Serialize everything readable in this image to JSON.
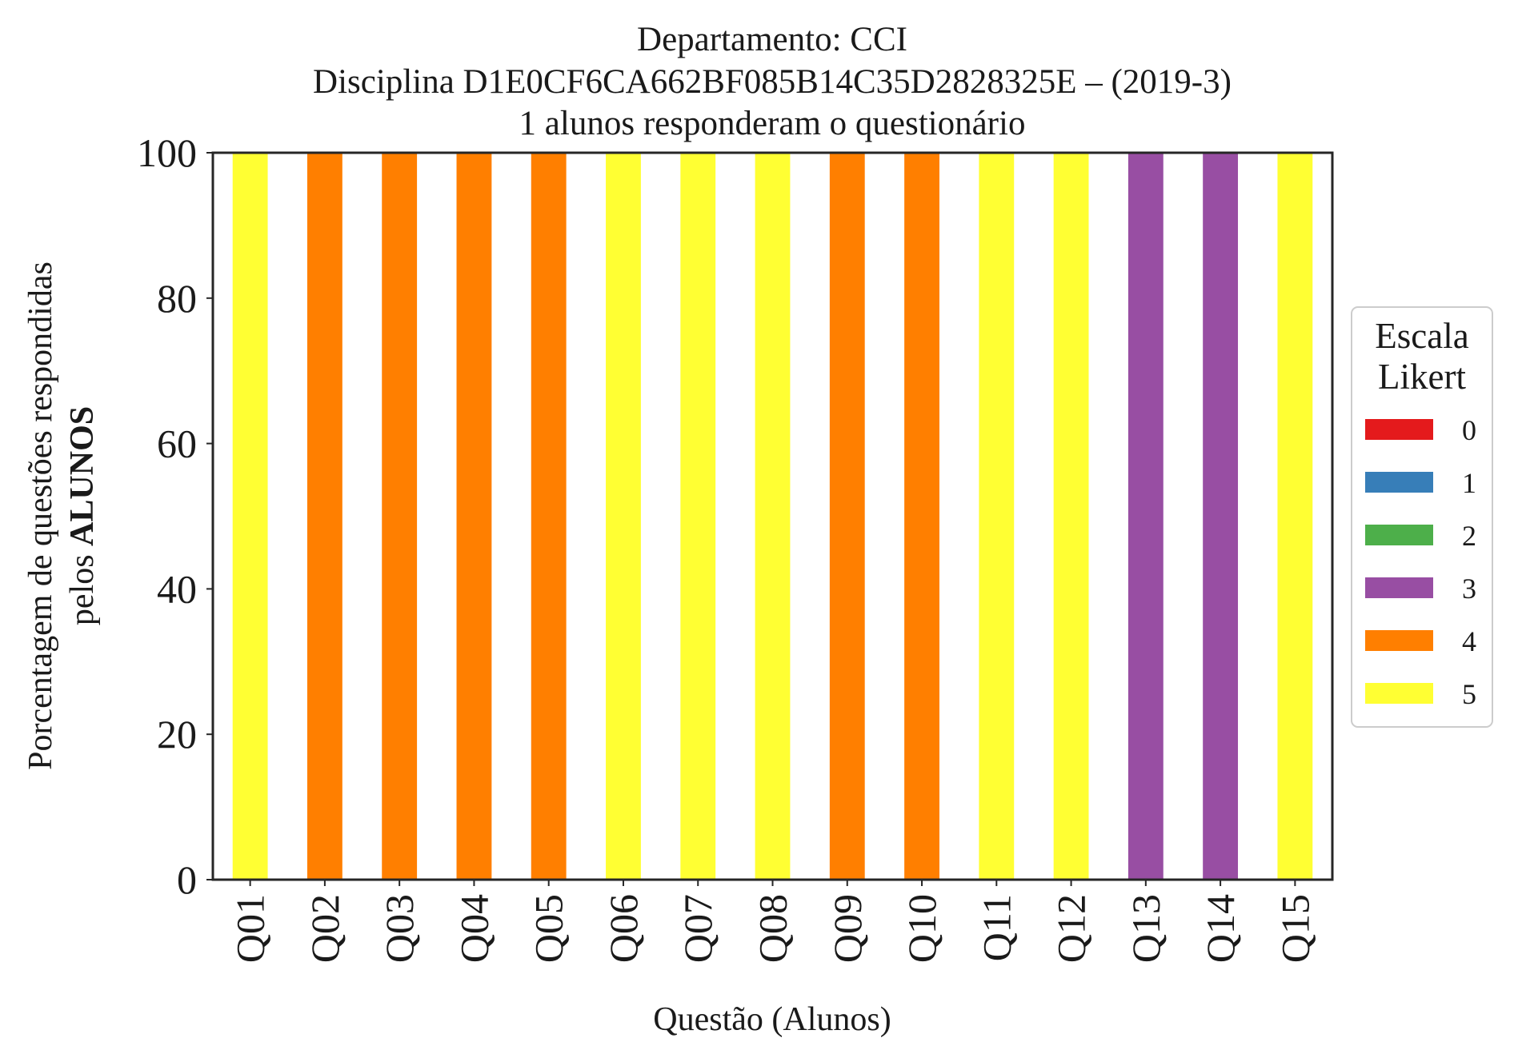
{
  "chart_data": {
    "type": "bar",
    "stacked": true,
    "title_lines": [
      "Departamento: CCI",
      "Disciplina D1E0CF6CA662BF085B14C35D2828325E – (2019-3)",
      "1 alunos responderam o questionário"
    ],
    "xlabel": "Questão (Alunos)",
    "ylabel_line1": "Porcentagem de questões respondidas",
    "ylabel_line2_prefix": "pelos ",
    "ylabel_line2_bold": "ALUNOS",
    "ylim": [
      0,
      100
    ],
    "yticks": [
      0,
      20,
      40,
      60,
      80,
      100
    ],
    "categories": [
      "Q01",
      "Q02",
      "Q03",
      "Q04",
      "Q05",
      "Q06",
      "Q07",
      "Q08",
      "Q09",
      "Q10",
      "Q11",
      "Q12",
      "Q13",
      "Q14",
      "Q15"
    ],
    "series": [
      {
        "name": "0",
        "color": "#e41a1c",
        "values": [
          0,
          0,
          0,
          0,
          0,
          0,
          0,
          0,
          0,
          0,
          0,
          0,
          0,
          0,
          0
        ]
      },
      {
        "name": "1",
        "color": "#377eb8",
        "values": [
          0,
          0,
          0,
          0,
          0,
          0,
          0,
          0,
          0,
          0,
          0,
          0,
          0,
          0,
          0
        ]
      },
      {
        "name": "2",
        "color": "#4daf4a",
        "values": [
          0,
          0,
          0,
          0,
          0,
          0,
          0,
          0,
          0,
          0,
          0,
          0,
          0,
          0,
          0
        ]
      },
      {
        "name": "3",
        "color": "#984ea3",
        "values": [
          0,
          0,
          0,
          0,
          0,
          0,
          0,
          0,
          0,
          0,
          0,
          0,
          100,
          100,
          0
        ]
      },
      {
        "name": "4",
        "color": "#ff7f00",
        "values": [
          0,
          100,
          100,
          100,
          100,
          0,
          0,
          0,
          100,
          100,
          0,
          0,
          0,
          0,
          0
        ]
      },
      {
        "name": "5",
        "color": "#ffff33",
        "values": [
          100,
          0,
          0,
          0,
          0,
          100,
          100,
          100,
          0,
          0,
          100,
          100,
          0,
          0,
          100
        ]
      }
    ],
    "legend": {
      "title_lines": [
        "Escala",
        "Likert"
      ],
      "position": "right"
    },
    "grid": false
  }
}
